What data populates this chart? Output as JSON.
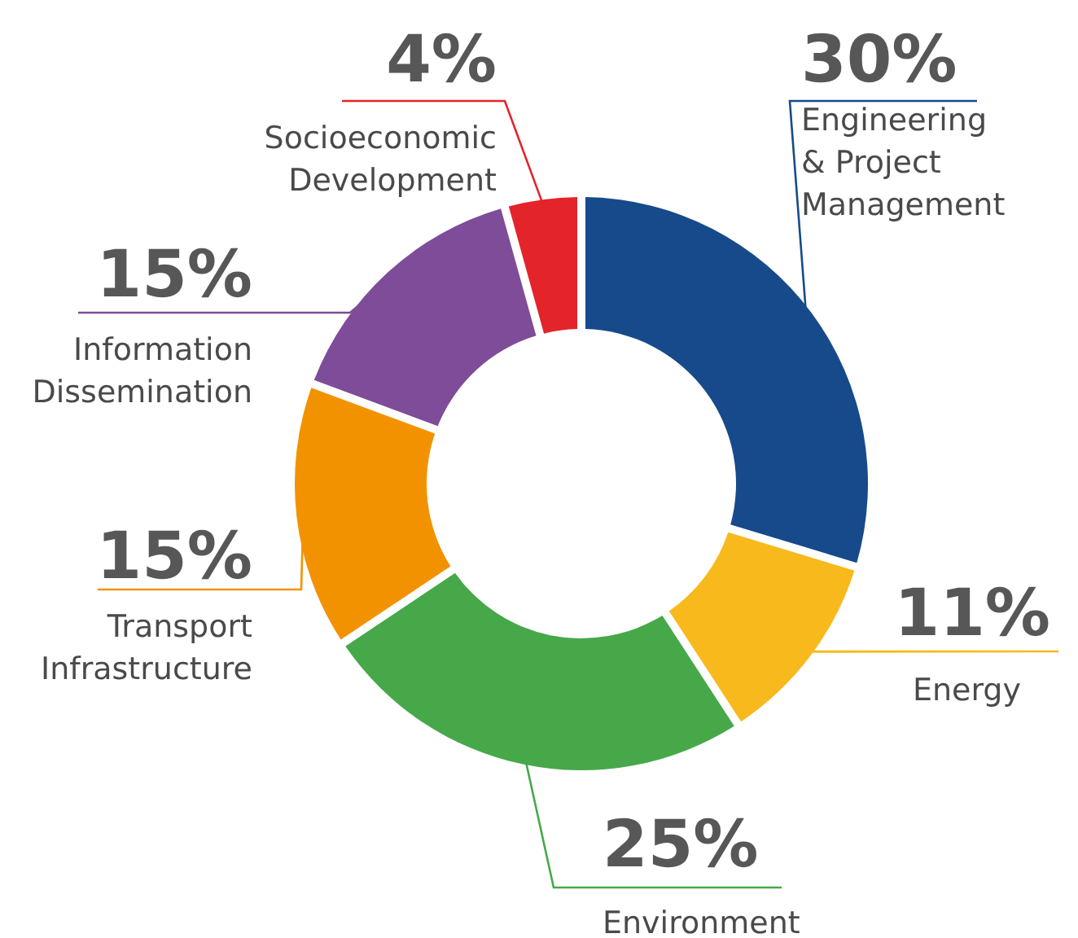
{
  "chart_data": {
    "type": "donut",
    "categories": [
      "Engineering\n& Project\nManagement",
      "Energy",
      "Environment",
      "Transport\nInfrastructure",
      "Information\nDissemination",
      "Socioeconomic\nDevelopment"
    ],
    "values": [
      30,
      11,
      25,
      15,
      15,
      4
    ],
    "value_labels": [
      "30%",
      "11%",
      "25%",
      "15%",
      "15%",
      "4%"
    ],
    "colors": [
      "#174a8b",
      "#f7b91c",
      "#47a84a",
      "#f39200",
      "#7e4c98",
      "#e3242b"
    ]
  }
}
